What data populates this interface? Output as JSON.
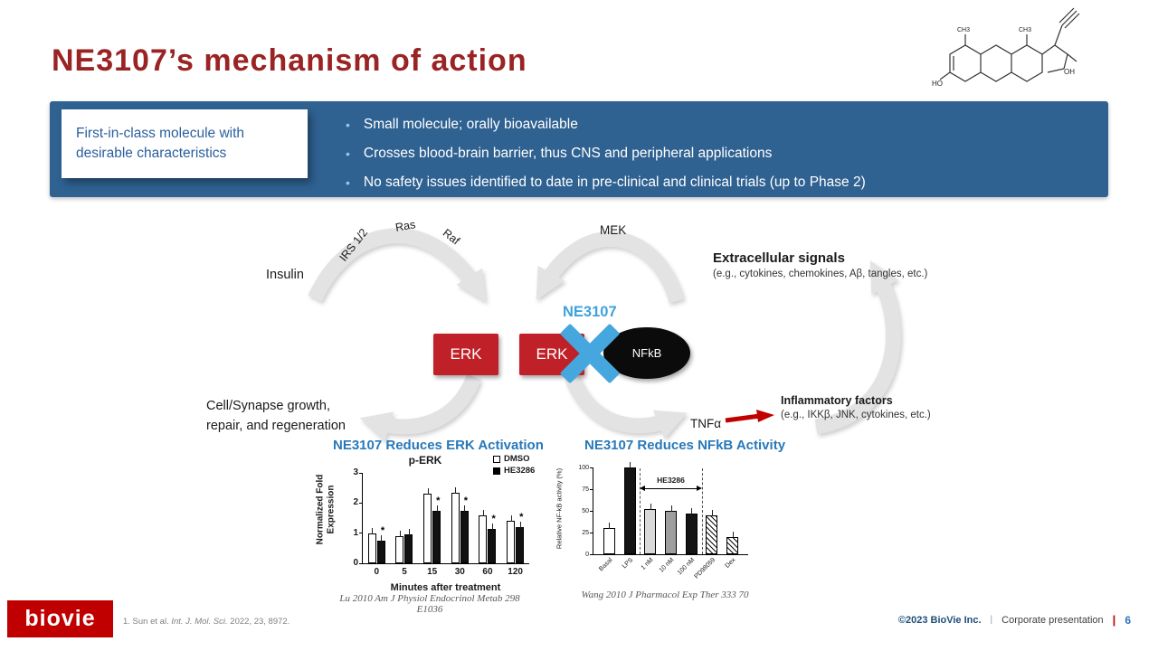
{
  "slide": {
    "title": "NE3107’s mechanism of action"
  },
  "molecule": {
    "label_ho": "HO",
    "label_oh": "OH",
    "label_ch3_a": "CH3",
    "label_ch3_b": "CH3"
  },
  "banner": {
    "headline": "First-in-class molecule with desirable characteristics",
    "bullets": [
      "Small molecule; orally bioavailable",
      "Crosses blood-brain barrier, thus CNS and peripheral applications",
      "No safety issues identified to date in pre-clinical and clinical trials (up to Phase 2)"
    ]
  },
  "pathway": {
    "insulin_label": "Insulin",
    "irs_label": "IRS 1/2",
    "ras_label": "Ras",
    "raf_label": "Raf",
    "mek_label": "MEK",
    "extracellular_title": "Extracellular signals",
    "extracellular_subtitle": "(e.g., cytokines, chemokines, Aβ, tangles, etc.)",
    "erk_left_label": "ERK",
    "erk_right_label": "ERK",
    "nfkb_label": "NFkB",
    "ne3107_label": "NE3107",
    "cell_growth_line1": "Cell/Synapse growth,",
    "cell_growth_line2": "repair, and regeneration",
    "tnfa_label": "TNFα",
    "inflammatory_title": "Inflammatory factors",
    "inflammatory_subtitle": "(e.g., IKKβ, JNK, cytokines, etc.)"
  },
  "charts": {
    "left_heading": "NE3107 Reduces ERK Activation",
    "right_heading": "NE3107 Reduces NFkB Activity",
    "left_citation": "Lu 2010 Am J Physiol Endocrinol Metab 298 E1036",
    "right_citation": "Wang 2010 J Pharmacol Exp Ther 333 70"
  },
  "chart_data": [
    {
      "type": "bar",
      "title": "p-ERK",
      "categories": [
        "0",
        "5",
        "15",
        "30",
        "60",
        "120"
      ],
      "series": [
        {
          "name": "DMSO",
          "fill": "white",
          "values": [
            1.0,
            0.9,
            2.3,
            2.35,
            1.6,
            1.4
          ]
        },
        {
          "name": "HE3286",
          "fill": "black",
          "values": [
            0.75,
            0.95,
            1.75,
            1.75,
            1.15,
            1.2
          ]
        }
      ],
      "significance_stars": [
        true,
        false,
        true,
        true,
        true,
        true
      ],
      "xlabel": "Minutes after treatment",
      "ylabel": "Normalized Fold Expression",
      "ylim": [
        0,
        3
      ],
      "yticks": [
        0,
        1,
        2,
        3
      ],
      "legend_position": "top-right",
      "grid": false
    },
    {
      "type": "bar",
      "title": "",
      "categories": [
        "Basal",
        "LPS",
        "1 nM",
        "10 nM",
        "100 nM",
        "PD98059",
        "Dex"
      ],
      "values": [
        30,
        100,
        52,
        50,
        47,
        45,
        20
      ],
      "fills": [
        "white",
        "black",
        "lightgray",
        "gray",
        "black",
        "hatch",
        "hatch"
      ],
      "xlabel": "",
      "ylabel": "Relative NF-kB activity (%)",
      "ylim": [
        0,
        100
      ],
      "yticks": [
        0,
        25,
        50,
        75,
        100
      ],
      "annotation": {
        "label": "HE3286",
        "span": [
          "1 nM",
          "100 nM"
        ]
      },
      "grid": false
    }
  ],
  "footer": {
    "logo_text": "biovie",
    "footnote_prefix": "1. Sun et al. ",
    "footnote_journal": "Int. J. Mol. Sci.",
    "footnote_suffix": " 2022, 23, 8972.",
    "copyright": "©2023 BioVie Inc.",
    "separator1": "|",
    "presentation_label": "Corporate presentation",
    "separator2": "|",
    "page_number": "6"
  },
  "colors": {
    "title_red": "#9A2323",
    "banner_blue": "#2F6191",
    "erk_red": "#C02027",
    "ne3107_blue": "#45A7DE",
    "heading_blue": "#2878B9",
    "logo_red": "#C00000",
    "page_number_blue": "#2E75B6"
  }
}
